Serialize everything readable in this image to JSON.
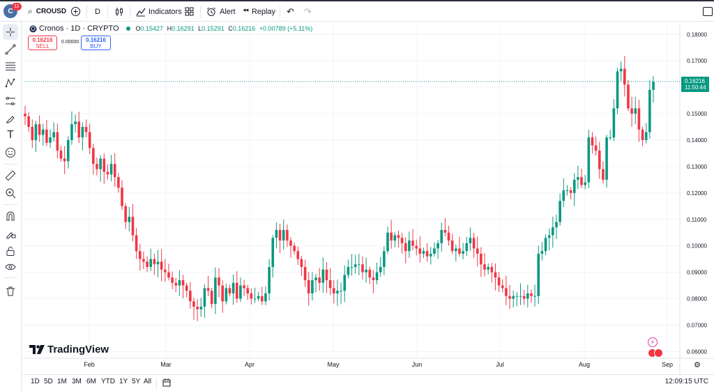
{
  "toolbar": {
    "avatar_letter": "C",
    "notification_count": "11",
    "symbol": "CROUSD",
    "interval": "D",
    "indicators_label": "Indicators",
    "alert_label": "Alert",
    "replay_label": "Replay"
  },
  "legend": {
    "title": "Cronos · 1D · CRYPTO",
    "open_label": "O",
    "open": "0.15427",
    "high_label": "H",
    "high": "0.16291",
    "low_label": "L",
    "low": "0.15291",
    "close_label": "C",
    "close": "0.16216",
    "change": "+0.00789 (+5.11%)"
  },
  "trade": {
    "sell_price": "0.16216",
    "sell_label": "SELL",
    "spread": "0.00000",
    "buy_price": "0.16216",
    "buy_label": "BUY"
  },
  "price_scale": {
    "ticks": [
      "0.18000",
      "0.17000",
      "0.16000",
      "0.15000",
      "0.14000",
      "0.13000",
      "0.12000",
      "0.11000",
      "0.10000",
      "0.09000",
      "0.08000",
      "0.07000",
      "0.06000"
    ],
    "last_price": "0.16216",
    "countdown": "11:50:44"
  },
  "time_scale": {
    "labels": [
      "Feb",
      "Mar",
      "Apr",
      "May",
      "Jun",
      "Jul",
      "Aug",
      "Sep"
    ]
  },
  "bottom": {
    "ranges": [
      "1D",
      "5D",
      "1M",
      "3M",
      "6M",
      "YTD",
      "1Y",
      "5Y",
      "All"
    ],
    "clock": "12:09:15 UTC"
  },
  "watermark": "TradingView",
  "colors": {
    "up": "#089981",
    "down": "#f23645",
    "accent": "#2962ff"
  },
  "chart_data": {
    "type": "candlestick",
    "title": "Cronos · 1D · CRYPTO",
    "ylim": [
      0.058,
      0.1835
    ],
    "x_labels": [
      "Feb",
      "Mar",
      "Apr",
      "May",
      "Jun",
      "Jul",
      "Aug",
      "Sep"
    ],
    "closes": [
      0.149,
      0.145,
      0.14,
      0.146,
      0.142,
      0.144,
      0.139,
      0.141,
      0.143,
      0.136,
      0.133,
      0.132,
      0.14,
      0.146,
      0.147,
      0.141,
      0.145,
      0.143,
      0.137,
      0.131,
      0.129,
      0.133,
      0.128,
      0.127,
      0.131,
      0.126,
      0.122,
      0.115,
      0.109,
      0.111,
      0.104,
      0.098,
      0.095,
      0.094,
      0.092,
      0.095,
      0.093,
      0.094,
      0.091,
      0.09,
      0.088,
      0.086,
      0.085,
      0.087,
      0.085,
      0.083,
      0.079,
      0.077,
      0.076,
      0.077,
      0.084,
      0.083,
      0.078,
      0.088,
      0.085,
      0.079,
      0.084,
      0.082,
      0.086,
      0.08,
      0.085,
      0.084,
      0.082,
      0.08,
      0.08,
      0.081,
      0.079,
      0.082,
      0.092,
      0.103,
      0.106,
      0.102,
      0.106,
      0.102,
      0.1,
      0.098,
      0.095,
      0.092,
      0.087,
      0.082,
      0.087,
      0.088,
      0.086,
      0.091,
      0.087,
      0.084,
      0.082,
      0.083,
      0.083,
      0.089,
      0.092,
      0.092,
      0.093,
      0.093,
      0.09,
      0.091,
      0.088,
      0.087,
      0.09,
      0.092,
      0.098,
      0.105,
      0.102,
      0.104,
      0.103,
      0.101,
      0.098,
      0.102,
      0.1,
      0.099,
      0.097,
      0.098,
      0.096,
      0.097,
      0.099,
      0.101,
      0.106,
      0.105,
      0.102,
      0.098,
      0.099,
      0.097,
      0.098,
      0.101,
      0.103,
      0.099,
      0.097,
      0.093,
      0.091,
      0.092,
      0.09,
      0.088,
      0.085,
      0.084,
      0.081,
      0.08,
      0.081,
      0.081,
      0.081,
      0.08,
      0.082,
      0.081,
      0.081,
      0.097,
      0.098,
      0.103,
      0.104,
      0.107,
      0.109,
      0.117,
      0.121,
      0.121,
      0.12,
      0.125,
      0.126,
      0.123,
      0.124,
      0.141,
      0.138,
      0.136,
      0.129,
      0.125,
      0.141,
      0.141,
      0.152,
      0.166,
      0.167,
      0.161,
      0.152,
      0.15,
      0.152,
      0.144,
      0.14,
      0.143,
      0.159,
      0.162
    ],
    "series": [
      {
        "name": "CROUSD"
      }
    ]
  }
}
